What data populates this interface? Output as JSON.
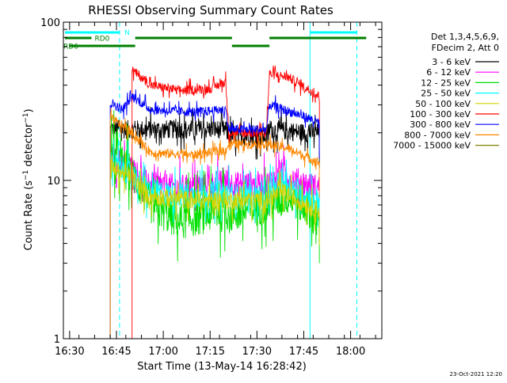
{
  "chart_data": {
    "type": "line",
    "title": "RHESSI Observing Summary Count Rates",
    "xlabel": "Start Time (13-May-14 16:28:42)",
    "ylabel": "Count Rate (s⁻¹ detector⁻¹)",
    "ylabel_main": "Count Rate (s",
    "ylabel_sup1": "−1",
    "ylabel_mid": " detector",
    "ylabel_sup2": "−1",
    "ylabel_end": ")",
    "y_scale": "log",
    "ylim": [
      1,
      100
    ],
    "y_ticks": [
      {
        "value": 1,
        "label": "1"
      },
      {
        "value": 10,
        "label": "10"
      },
      {
        "value": 100,
        "label": "100"
      }
    ],
    "xlim": [
      "16:28",
      "18:10"
    ],
    "x_ticks": [
      {
        "value": "16:30",
        "label": "16:30"
      },
      {
        "value": "16:45",
        "label": "16:45"
      },
      {
        "value": "17:00",
        "label": "17:00"
      },
      {
        "value": "17:15",
        "label": "17:15"
      },
      {
        "value": "17:30",
        "label": "17:30"
      },
      {
        "value": "17:45",
        "label": "17:45"
      },
      {
        "value": "18:00",
        "label": "18:00"
      }
    ],
    "legend_header": [
      "Det 1,3,4,5,6,9,",
      "FDecim 2, Att 0"
    ],
    "legend_position": "right",
    "timestamp": "23-Oct-2021 12:20",
    "night_bars": [
      {
        "start": "16:28",
        "end": "16:46",
        "color": "#00ffff",
        "label": "N"
      },
      {
        "start": "17:47",
        "end": "18:02",
        "color": "#00ffff",
        "label": ""
      }
    ],
    "vlines_dashed": [
      "16:46",
      "18:02"
    ],
    "vlines_solid": [
      "17:47"
    ],
    "attenuator_bars": [
      {
        "start": "16:28",
        "end": "16:37",
        "y_level": 1,
        "color": "#008000",
        "label": "RD0"
      },
      {
        "start": "16:28",
        "end": "16:28",
        "y_level": 2,
        "color": "#008000",
        "label": "RD6"
      },
      {
        "start": "16:30",
        "end": "16:51",
        "y_level": 2,
        "color": "#008000",
        "label": ""
      },
      {
        "start": "16:51",
        "end": "17:22",
        "y_level": 1,
        "color": "#008000",
        "label": ""
      },
      {
        "start": "17:22",
        "end": "17:34",
        "y_level": 2,
        "color": "#008000",
        "label": ""
      },
      {
        "start": "17:34",
        "end": "18:05",
        "y_level": 1,
        "color": "#008000",
        "label": ""
      }
    ],
    "series": [
      {
        "name": "3 - 6 keV",
        "color": "#000000",
        "noise": 0.06,
        "points": [
          [
            "16:43",
            21
          ],
          [
            "16:52",
            21
          ],
          [
            "17:05",
            21
          ],
          [
            "17:20",
            21
          ],
          [
            "17:21",
            19
          ],
          [
            "17:33",
            19
          ],
          [
            "17:34",
            21
          ],
          [
            "17:46",
            20
          ],
          [
            "17:50",
            20
          ]
        ]
      },
      {
        "name": "6 - 12 keV",
        "color": "#ff00ff",
        "noise": 0.08,
        "points": [
          [
            "16:43",
            14
          ],
          [
            "16:50",
            12
          ],
          [
            "16:55",
            9.5
          ],
          [
            "17:10",
            9
          ],
          [
            "17:21",
            10
          ],
          [
            "17:22",
            9.5
          ],
          [
            "17:33",
            9.5
          ],
          [
            "17:38",
            11
          ],
          [
            "17:46",
            9.5
          ],
          [
            "17:50",
            9
          ]
        ]
      },
      {
        "name": "12 - 25 keV",
        "color": "#00e000",
        "noise": 0.12,
        "points": [
          [
            "16:43",
            15
          ],
          [
            "16:50",
            11
          ],
          [
            "16:56",
            7
          ],
          [
            "17:05",
            5.5
          ],
          [
            "17:20",
            6.5
          ],
          [
            "17:21",
            6
          ],
          [
            "17:33",
            7
          ],
          [
            "17:40",
            8
          ],
          [
            "17:47",
            6.5
          ],
          [
            "17:50",
            5
          ]
        ]
      },
      {
        "name": "25 - 50 keV",
        "color": "#00ffff",
        "noise": 0.08,
        "points": [
          [
            "16:43",
            13
          ],
          [
            "16:50",
            11
          ],
          [
            "16:55",
            8.5
          ],
          [
            "17:10",
            8
          ],
          [
            "17:21",
            8.5
          ],
          [
            "17:22",
            8
          ],
          [
            "17:33",
            8
          ],
          [
            "17:38",
            10
          ],
          [
            "17:46",
            8
          ],
          [
            "17:50",
            7.5
          ]
        ]
      },
      {
        "name": "50 - 100 keV",
        "color": "#d4d400",
        "noise": 0.06,
        "points": [
          [
            "16:43",
            12
          ],
          [
            "16:50",
            10.5
          ],
          [
            "16:55",
            8
          ],
          [
            "17:10",
            7.5
          ],
          [
            "17:21",
            7.5
          ],
          [
            "17:22",
            7.5
          ],
          [
            "17:33",
            7.5
          ],
          [
            "17:38",
            8.5
          ],
          [
            "17:46",
            7
          ],
          [
            "17:50",
            6.5
          ]
        ]
      },
      {
        "name": "100 - 300 keV",
        "color": "#ff0000",
        "noise": 0.03,
        "points": [
          [
            "16:50",
            50
          ],
          [
            "16:56",
            40
          ],
          [
            "17:05",
            37
          ],
          [
            "17:15",
            38
          ],
          [
            "17:20",
            42
          ],
          [
            "17:21",
            20
          ],
          [
            "17:33",
            20
          ],
          [
            "17:34",
            47
          ],
          [
            "17:40",
            45
          ],
          [
            "17:46",
            38
          ],
          [
            "17:50",
            34
          ]
        ]
      },
      {
        "name": "300 - 800 keV",
        "color": "#0000ff",
        "noise": 0.03,
        "points": [
          [
            "16:43",
            31
          ],
          [
            "16:47",
            28
          ],
          [
            "16:50",
            34
          ],
          [
            "16:56",
            28
          ],
          [
            "17:10",
            27
          ],
          [
            "17:20",
            28
          ],
          [
            "17:21",
            21
          ],
          [
            "17:33",
            21
          ],
          [
            "17:34",
            30
          ],
          [
            "17:46",
            25
          ],
          [
            "17:50",
            23
          ]
        ]
      },
      {
        "name": "800 - 7000 keV",
        "color": "#ff8800",
        "noise": 0.03,
        "points": [
          [
            "16:43",
            25
          ],
          [
            "16:50",
            20
          ],
          [
            "16:56",
            15
          ],
          [
            "17:10",
            14.5
          ],
          [
            "17:20",
            15.5
          ],
          [
            "17:21",
            17
          ],
          [
            "17:33",
            17
          ],
          [
            "17:40",
            16
          ],
          [
            "17:46",
            14
          ],
          [
            "17:50",
            13
          ]
        ]
      },
      {
        "name": "7000 - 15000 keV",
        "color": "#808000",
        "noise": 0.02,
        "points": []
      }
    ]
  }
}
